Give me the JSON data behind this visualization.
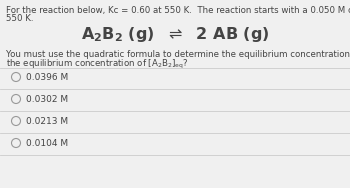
{
  "background_color": "#f0f0f0",
  "intro_text_line1": "For the reaction below, Kc = 0.60 at 550 K.  The reaction starts with a 0.050 M concentration of A₂B₂, at",
  "intro_text_line2": "550 K.",
  "body_text_line1": "You must use the quadratic formula to determine the equilibrium concentrations of each species.  What is",
  "body_text_line2": "the equilibrium concentration of [A₂B₂]ₑₙ?",
  "choices": [
    "0.0396 M",
    "0.0302 M",
    "0.0213 M",
    "0.0104 M"
  ],
  "text_color": "#444444",
  "circle_color": "#999999",
  "line_color": "#cccccc",
  "intro_fontsize": 6.2,
  "reaction_fontsize": 11.5,
  "body_fontsize": 6.2,
  "choice_fontsize": 6.5
}
